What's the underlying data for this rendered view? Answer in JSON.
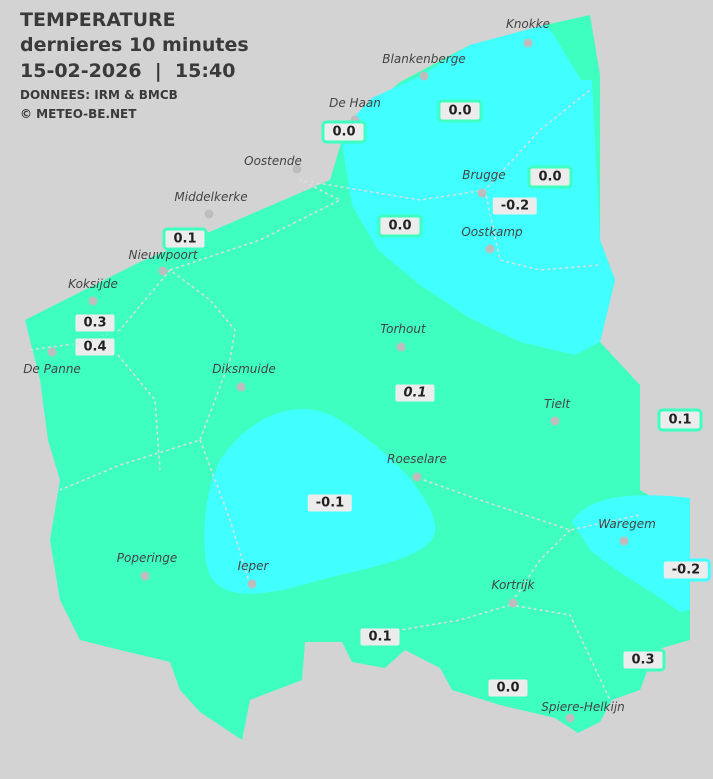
{
  "header": {
    "title": "TEMPERATURE",
    "subtitle": "dernieres 10 minutes",
    "datetime": "15-02-2026  |  15:40",
    "source": "DONNEES: IRM & BMCB",
    "copyright": "© METEO-BE.NET"
  },
  "colors": {
    "background": "#d3d3d3",
    "zone_0_to_0.5": "#3effc0",
    "zone_below_0": "#41ffff"
  },
  "cities": [
    {
      "name": "Knokke"
    },
    {
      "name": "Blankenberge"
    },
    {
      "name": "De Haan"
    },
    {
      "name": "Oostende"
    },
    {
      "name": "Brugge"
    },
    {
      "name": "Middelkerke"
    },
    {
      "name": "Oostkamp"
    },
    {
      "name": "Nieuwpoort"
    },
    {
      "name": "Koksijde"
    },
    {
      "name": "De Panne"
    },
    {
      "name": "Torhout"
    },
    {
      "name": "Diksmuide"
    },
    {
      "name": "Tielt"
    },
    {
      "name": "Roeselare"
    },
    {
      "name": "Waregem"
    },
    {
      "name": "Poperinge"
    },
    {
      "name": "Ieper"
    },
    {
      "name": "Kortrijk"
    },
    {
      "name": "Spiere-Helkijn"
    }
  ],
  "readings": [
    "0.0",
    "0.0",
    "0.0",
    "-0.2",
    "0.0",
    "0.1",
    "0.3",
    "0.4",
    "0.1",
    "0.1",
    "-0.1",
    "-0.2",
    "0.1",
    "0.3",
    "0.0"
  ]
}
